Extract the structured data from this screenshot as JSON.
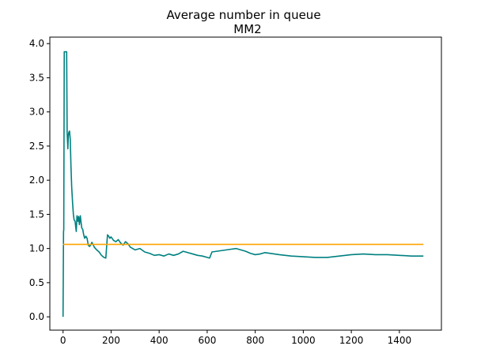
{
  "chart_data": {
    "type": "line",
    "title": "Average number in queue",
    "subtitle": "MM2",
    "xlabel": "",
    "ylabel": "",
    "xlim": [
      -55,
      1575
    ],
    "ylim": [
      -0.195,
      4.095
    ],
    "x_ticks": [
      0,
      200,
      400,
      600,
      800,
      1000,
      1200,
      1400
    ],
    "y_ticks": [
      0.0,
      0.5,
      1.0,
      1.5,
      2.0,
      2.5,
      3.0,
      3.5,
      4.0
    ],
    "x_tick_labels": [
      "0",
      "200",
      "400",
      "600",
      "800",
      "1000",
      "1200",
      "1400"
    ],
    "y_tick_labels": [
      "0.0",
      "0.5",
      "1.0",
      "1.5",
      "2.0",
      "2.5",
      "3.0",
      "3.5",
      "4.0"
    ],
    "grid": false,
    "colors": {
      "simulated": "#008080",
      "theoretical": "#ffa500"
    },
    "series": [
      {
        "color": "#008080",
        "x": [
          0,
          2,
          3,
          5,
          8,
          10,
          13,
          15,
          17,
          20,
          22,
          24,
          27,
          30,
          33,
          36,
          40,
          43,
          46,
          50,
          55,
          58,
          62,
          65,
          68,
          72,
          75,
          78,
          82,
          86,
          90,
          95,
          100,
          105,
          110,
          115,
          120,
          125,
          130,
          135,
          140,
          150,
          160,
          170,
          178,
          185,
          190,
          195,
          200,
          210,
          220,
          230,
          240,
          250,
          260,
          270,
          280,
          290,
          300,
          320,
          340,
          360,
          380,
          400,
          420,
          440,
          460,
          480,
          500,
          520,
          540,
          560,
          580,
          600,
          610,
          620,
          640,
          660,
          680,
          700,
          720,
          740,
          760,
          780,
          800,
          820,
          840,
          860,
          880,
          900,
          950,
          1000,
          1050,
          1100,
          1150,
          1200,
          1250,
          1300,
          1350,
          1400,
          1450,
          1500
        ],
        "y": [
          0.0,
          1.25,
          1.27,
          3.88,
          3.88,
          3.88,
          3.88,
          3.88,
          2.7,
          2.46,
          2.65,
          2.7,
          2.72,
          2.6,
          2.2,
          1.9,
          1.65,
          1.5,
          1.42,
          1.4,
          1.25,
          1.48,
          1.4,
          1.47,
          1.35,
          1.48,
          1.38,
          1.3,
          1.28,
          1.2,
          1.15,
          1.18,
          1.15,
          1.05,
          1.03,
          1.05,
          1.09,
          1.06,
          1.02,
          1.0,
          0.98,
          0.95,
          0.9,
          0.87,
          0.86,
          1.2,
          1.18,
          1.15,
          1.17,
          1.12,
          1.1,
          1.13,
          1.08,
          1.05,
          1.1,
          1.07,
          1.02,
          1.0,
          0.98,
          1.0,
          0.95,
          0.93,
          0.9,
          0.91,
          0.89,
          0.92,
          0.9,
          0.92,
          0.96,
          0.94,
          0.92,
          0.9,
          0.89,
          0.87,
          0.86,
          0.95,
          0.96,
          0.97,
          0.98,
          0.99,
          1.0,
          0.98,
          0.96,
          0.93,
          0.91,
          0.92,
          0.94,
          0.93,
          0.92,
          0.91,
          0.89,
          0.88,
          0.87,
          0.87,
          0.89,
          0.91,
          0.92,
          0.91,
          0.91,
          0.9,
          0.89,
          0.89
        ]
      },
      {
        "color": "#ffa500",
        "x": [
          0,
          1500
        ],
        "y": [
          1.06,
          1.06
        ]
      }
    ]
  }
}
